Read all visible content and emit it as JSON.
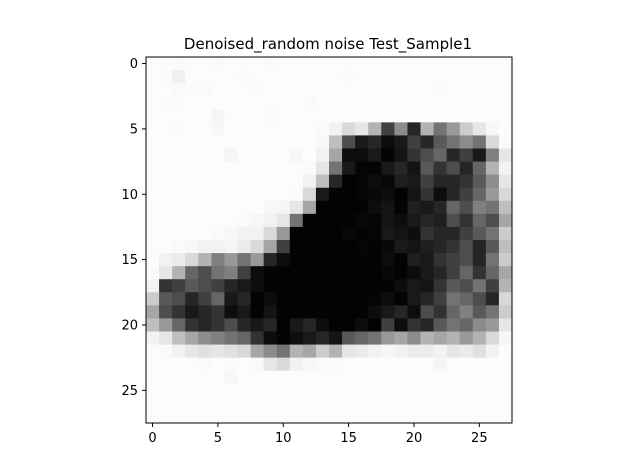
{
  "chart_data": {
    "type": "heatmap",
    "title": "Denoised_random noise Test_Sample1",
    "xlabel": "",
    "ylabel": "",
    "colormap": "gray_r",
    "value_range": [
      0,
      1
    ],
    "x_range": [
      -0.5,
      27.5
    ],
    "y_range": [
      -0.5,
      27.5
    ],
    "y_inverted": true,
    "x_ticks": [
      0,
      5,
      10,
      15,
      20,
      25
    ],
    "x_tick_labels": [
      "0",
      "5",
      "10",
      "15",
      "20",
      "25"
    ],
    "y_ticks": [
      0,
      5,
      10,
      15,
      20,
      25
    ],
    "y_tick_labels": [
      "0",
      "5",
      "10",
      "15",
      "20",
      "25"
    ],
    "grid": false,
    "matrix": [
      [
        0.01,
        0.01,
        0.02,
        0.01,
        0.01,
        0.02,
        0.01,
        0.01,
        0.01,
        0.02,
        0.01,
        0.01,
        0.01,
        0.01,
        0.01,
        0.01,
        0.01,
        0.01,
        0.01,
        0.01,
        0.01,
        0.01,
        0.01,
        0.01,
        0.01,
        0.01,
        0.01,
        0.01
      ],
      [
        0.01,
        0.02,
        0.06,
        0.01,
        0.01,
        0.01,
        0.01,
        0.02,
        0.01,
        0.01,
        0.01,
        0.01,
        0.01,
        0.01,
        0.01,
        0.02,
        0.01,
        0.01,
        0.01,
        0.01,
        0.01,
        0.01,
        0.01,
        0.01,
        0.01,
        0.01,
        0.01,
        0.01
      ],
      [
        0.01,
        0.01,
        0.02,
        0.02,
        0.02,
        0.01,
        0.01,
        0.01,
        0.02,
        0.01,
        0.01,
        0.01,
        0.01,
        0.01,
        0.01,
        0.01,
        0.01,
        0.01,
        0.01,
        0.01,
        0.01,
        0.01,
        0.02,
        0.01,
        0.01,
        0.01,
        0.01,
        0.01
      ],
      [
        0.01,
        0.02,
        0.02,
        0.01,
        0.01,
        0.01,
        0.01,
        0.01,
        0.01,
        0.01,
        0.01,
        0.01,
        0.02,
        0.01,
        0.01,
        0.01,
        0.01,
        0.01,
        0.01,
        0.01,
        0.01,
        0.01,
        0.01,
        0.01,
        0.01,
        0.01,
        0.01,
        0.01
      ],
      [
        0.01,
        0.01,
        0.01,
        0.01,
        0.01,
        0.04,
        0.01,
        0.01,
        0.01,
        0.02,
        0.01,
        0.01,
        0.01,
        0.01,
        0.01,
        0.01,
        0.01,
        0.01,
        0.01,
        0.01,
        0.01,
        0.01,
        0.01,
        0.01,
        0.01,
        0.01,
        0.01,
        0.01
      ],
      [
        0.01,
        0.01,
        0.02,
        0.01,
        0.01,
        0.03,
        0.01,
        0.01,
        0.01,
        0.01,
        0.01,
        0.01,
        0.01,
        0.02,
        0.05,
        0.15,
        0.1,
        0.3,
        0.75,
        0.45,
        0.85,
        0.3,
        0.55,
        0.4,
        0.2,
        0.1,
        0.03,
        0.01
      ],
      [
        0.01,
        0.01,
        0.01,
        0.01,
        0.01,
        0.01,
        0.01,
        0.01,
        0.01,
        0.01,
        0.01,
        0.01,
        0.01,
        0.03,
        0.25,
        0.7,
        0.9,
        0.85,
        0.95,
        0.9,
        0.75,
        0.85,
        0.65,
        0.55,
        0.45,
        0.55,
        0.15,
        0.02
      ],
      [
        0.01,
        0.01,
        0.01,
        0.01,
        0.01,
        0.01,
        0.04,
        0.01,
        0.01,
        0.01,
        0.01,
        0.03,
        0.01,
        0.05,
        0.35,
        0.95,
        0.95,
        0.9,
        0.99,
        0.92,
        0.8,
        0.7,
        0.6,
        0.85,
        0.75,
        0.9,
        0.5,
        0.1
      ],
      [
        0.01,
        0.01,
        0.01,
        0.01,
        0.01,
        0.01,
        0.01,
        0.01,
        0.01,
        0.01,
        0.01,
        0.01,
        0.02,
        0.1,
        0.55,
        0.9,
        0.98,
        0.98,
        0.9,
        0.85,
        0.92,
        0.65,
        0.8,
        0.7,
        0.85,
        0.6,
        0.3,
        0.05
      ],
      [
        0.01,
        0.01,
        0.01,
        0.01,
        0.01,
        0.01,
        0.01,
        0.01,
        0.01,
        0.01,
        0.01,
        0.01,
        0.05,
        0.25,
        0.85,
        0.99,
        0.98,
        0.95,
        0.97,
        0.88,
        0.9,
        0.75,
        0.85,
        0.85,
        0.8,
        0.65,
        0.45,
        0.1
      ],
      [
        0.01,
        0.01,
        0.01,
        0.01,
        0.01,
        0.01,
        0.01,
        0.01,
        0.01,
        0.01,
        0.01,
        0.02,
        0.15,
        0.9,
        0.99,
        0.99,
        0.98,
        0.97,
        0.95,
        0.99,
        0.92,
        0.8,
        0.95,
        0.85,
        0.75,
        0.6,
        0.4,
        0.15
      ],
      [
        0.01,
        0.01,
        0.01,
        0.01,
        0.01,
        0.01,
        0.01,
        0.01,
        0.01,
        0.03,
        0.04,
        0.1,
        0.35,
        0.99,
        0.99,
        0.99,
        0.99,
        0.95,
        0.92,
        0.98,
        0.88,
        0.9,
        0.85,
        0.6,
        0.7,
        0.5,
        0.55,
        0.25
      ],
      [
        0.01,
        0.01,
        0.01,
        0.01,
        0.01,
        0.01,
        0.01,
        0.02,
        0.03,
        0.05,
        0.1,
        0.55,
        0.99,
        0.99,
        0.99,
        0.99,
        0.97,
        0.98,
        0.92,
        0.95,
        0.9,
        0.85,
        0.88,
        0.7,
        0.8,
        0.6,
        0.7,
        0.35
      ],
      [
        0.01,
        0.01,
        0.01,
        0.01,
        0.01,
        0.02,
        0.03,
        0.05,
        0.05,
        0.15,
        0.4,
        0.99,
        0.99,
        0.99,
        0.99,
        0.97,
        0.99,
        0.98,
        0.9,
        0.92,
        0.95,
        0.8,
        0.85,
        0.85,
        0.75,
        0.65,
        0.55,
        0.2
      ],
      [
        0.01,
        0.01,
        0.02,
        0.03,
        0.05,
        0.05,
        0.04,
        0.08,
        0.15,
        0.35,
        0.75,
        0.99,
        0.99,
        0.99,
        0.99,
        0.99,
        0.98,
        0.99,
        0.97,
        0.9,
        0.92,
        0.88,
        0.85,
        0.8,
        0.7,
        0.85,
        0.65,
        0.25
      ],
      [
        0.01,
        0.05,
        0.08,
        0.15,
        0.3,
        0.5,
        0.4,
        0.55,
        0.4,
        0.85,
        0.95,
        0.99,
        0.99,
        0.99,
        0.99,
        0.99,
        0.99,
        0.99,
        0.95,
        0.99,
        0.88,
        0.9,
        0.8,
        0.75,
        0.7,
        0.85,
        0.55,
        0.2
      ],
      [
        0.02,
        0.1,
        0.3,
        0.6,
        0.7,
        0.55,
        0.5,
        0.75,
        0.95,
        0.99,
        0.99,
        0.99,
        0.99,
        0.99,
        0.99,
        0.99,
        0.99,
        0.99,
        0.97,
        0.99,
        0.95,
        0.9,
        0.85,
        0.75,
        0.6,
        0.8,
        0.6,
        0.35
      ],
      [
        0.05,
        0.8,
        0.75,
        0.65,
        0.7,
        0.75,
        0.85,
        0.9,
        0.95,
        0.99,
        0.99,
        0.99,
        0.99,
        0.99,
        0.99,
        0.99,
        0.99,
        0.99,
        0.99,
        0.95,
        0.9,
        0.92,
        0.8,
        0.65,
        0.7,
        0.55,
        0.75,
        0.3
      ],
      [
        0.2,
        0.65,
        0.7,
        0.85,
        0.75,
        0.6,
        0.9,
        0.85,
        0.99,
        0.95,
        0.99,
        0.99,
        0.99,
        0.99,
        0.99,
        0.99,
        0.99,
        0.98,
        0.95,
        0.99,
        0.9,
        0.85,
        0.75,
        0.55,
        0.6,
        0.7,
        0.85,
        0.15
      ],
      [
        0.35,
        0.7,
        0.8,
        0.9,
        0.85,
        0.8,
        0.95,
        0.9,
        0.99,
        0.92,
        0.99,
        0.99,
        0.99,
        0.99,
        0.99,
        0.99,
        0.99,
        0.95,
        0.9,
        0.85,
        0.95,
        0.7,
        0.8,
        0.6,
        0.5,
        0.65,
        0.55,
        0.2
      ],
      [
        0.25,
        0.4,
        0.6,
        0.8,
        0.85,
        0.8,
        0.7,
        0.85,
        0.9,
        0.85,
        0.99,
        0.9,
        0.85,
        0.95,
        0.99,
        0.99,
        0.95,
        0.99,
        0.75,
        0.95,
        0.8,
        0.85,
        0.65,
        0.55,
        0.6,
        0.45,
        0.4,
        0.1
      ],
      [
        0.05,
        0.1,
        0.25,
        0.35,
        0.45,
        0.5,
        0.55,
        0.6,
        0.8,
        0.95,
        0.99,
        0.95,
        0.9,
        0.85,
        0.92,
        0.65,
        0.6,
        0.55,
        0.4,
        0.35,
        0.45,
        0.3,
        0.35,
        0.3,
        0.4,
        0.3,
        0.15,
        0.03
      ],
      [
        0.01,
        0.02,
        0.05,
        0.1,
        0.12,
        0.1,
        0.12,
        0.15,
        0.35,
        0.45,
        0.55,
        0.3,
        0.35,
        0.2,
        0.3,
        0.1,
        0.08,
        0.05,
        0.03,
        0.05,
        0.08,
        0.08,
        0.05,
        0.1,
        0.08,
        0.12,
        0.05,
        0.01
      ],
      [
        0.01,
        0.01,
        0.01,
        0.01,
        0.02,
        0.01,
        0.02,
        0.01,
        0.02,
        0.1,
        0.15,
        0.05,
        0.03,
        0.02,
        0.02,
        0.01,
        0.01,
        0.01,
        0.01,
        0.01,
        0.01,
        0.01,
        0.04,
        0.01,
        0.01,
        0.01,
        0.01,
        0.01
      ],
      [
        0.01,
        0.01,
        0.01,
        0.01,
        0.01,
        0.01,
        0.03,
        0.01,
        0.01,
        0.01,
        0.01,
        0.01,
        0.01,
        0.01,
        0.01,
        0.01,
        0.01,
        0.01,
        0.01,
        0.01,
        0.01,
        0.01,
        0.01,
        0.01,
        0.01,
        0.01,
        0.01,
        0.01
      ],
      [
        0.01,
        0.01,
        0.01,
        0.01,
        0.01,
        0.01,
        0.01,
        0.01,
        0.01,
        0.01,
        0.01,
        0.01,
        0.01,
        0.01,
        0.01,
        0.01,
        0.01,
        0.01,
        0.01,
        0.01,
        0.01,
        0.01,
        0.01,
        0.01,
        0.01,
        0.01,
        0.01,
        0.01
      ],
      [
        0.01,
        0.01,
        0.01,
        0.01,
        0.01,
        0.01,
        0.01,
        0.01,
        0.01,
        0.01,
        0.01,
        0.01,
        0.01,
        0.01,
        0.01,
        0.01,
        0.01,
        0.01,
        0.01,
        0.01,
        0.01,
        0.01,
        0.01,
        0.01,
        0.01,
        0.01,
        0.01,
        0.01
      ],
      [
        0.01,
        0.01,
        0.01,
        0.01,
        0.01,
        0.01,
        0.01,
        0.01,
        0.01,
        0.01,
        0.01,
        0.01,
        0.01,
        0.01,
        0.01,
        0.01,
        0.01,
        0.01,
        0.01,
        0.01,
        0.01,
        0.01,
        0.01,
        0.01,
        0.01,
        0.01,
        0.01,
        0.01
      ]
    ]
  }
}
